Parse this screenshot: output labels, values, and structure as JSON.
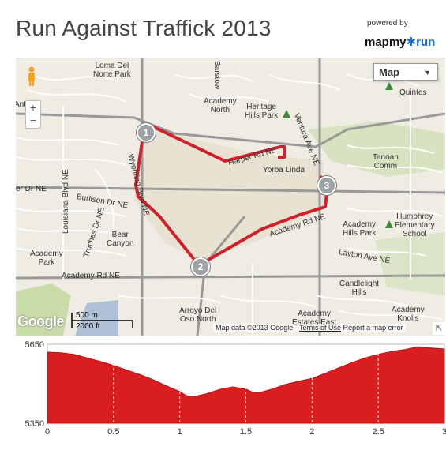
{
  "title": "Run Against Traffick 2013",
  "powered_by": "powered by",
  "brand": {
    "prefix": "mapmy",
    "suffix": "run"
  },
  "map": {
    "map_type_label": "Map",
    "scale_m": "500 m",
    "scale_ft": "2000 ft",
    "google_logo": "Google",
    "attribution": "Map data ©2013 Google",
    "terms": "Terms of Use",
    "report": "Report a map error",
    "zoom_in": "+",
    "zoom_out": "−",
    "markers": [
      "1",
      "2",
      "3"
    ],
    "labels": {
      "loma": "Loma Del\nNorte Park",
      "barstow": "Barstow",
      "academy_north": "Academy\nNorth",
      "heritage": "Heritage\nHills Park",
      "ventura": "Ventura Ave NE",
      "quintes": "Quintes",
      "anto": "Anto",
      "harper": "Harper Rd NE",
      "yorba": "Yorba Linda",
      "tanoan": "Tanoan\nComm",
      "louisiana": "Louisiana Blvd NE",
      "wyoming": "Wyoming Blvd NE",
      "er_dr": "er Dr NE",
      "burlison": "Burlison Dr NE",
      "academy_rd_ne_upper": "Academy Rd NE",
      "humphrey": "Humphrey\nElementary\nSchool",
      "academy_hills": "Academy\nHills Park",
      "truchas": "Truchas Dr NE",
      "bear": "Bear\nCanyon",
      "layton": "Layton Ave NE",
      "academy_park": "Academy\nPark",
      "academy_rd_ne": "Academy Rd NE",
      "candlelight": "Candlelight\nHills",
      "arroyo": "Arroyo Del\nOso North",
      "academy_estates": "Academy\nEstates East",
      "academy_knolls": "Academy\nKnolls"
    }
  },
  "elevation": {
    "y_ticks": [
      "5650",
      "5350"
    ],
    "x_ticks": [
      "0",
      "0.5",
      "1",
      "1.5",
      "2",
      "2.5",
      "3"
    ],
    "y_range": [
      5350,
      5650
    ],
    "x_range": [
      0,
      3
    ],
    "fill_color": "#d81e1e",
    "profile": [
      [
        0,
        5620
      ],
      [
        0.1,
        5618
      ],
      [
        0.2,
        5612
      ],
      [
        0.3,
        5598
      ],
      [
        0.4,
        5585
      ],
      [
        0.5,
        5570
      ],
      [
        0.6,
        5552
      ],
      [
        0.7,
        5535
      ],
      [
        0.8,
        5515
      ],
      [
        0.9,
        5492
      ],
      [
        1.0,
        5470
      ],
      [
        1.05,
        5455
      ],
      [
        1.1,
        5450
      ],
      [
        1.2,
        5462
      ],
      [
        1.3,
        5478
      ],
      [
        1.4,
        5488
      ],
      [
        1.5,
        5480
      ],
      [
        1.55,
        5468
      ],
      [
        1.6,
        5466
      ],
      [
        1.7,
        5480
      ],
      [
        1.8,
        5498
      ],
      [
        1.9,
        5510
      ],
      [
        2.0,
        5520
      ],
      [
        2.1,
        5540
      ],
      [
        2.2,
        5560
      ],
      [
        2.3,
        5580
      ],
      [
        2.4,
        5598
      ],
      [
        2.5,
        5612
      ],
      [
        2.6,
        5622
      ],
      [
        2.7,
        5630
      ],
      [
        2.8,
        5640
      ],
      [
        2.9,
        5636
      ],
      [
        3.0,
        5632
      ]
    ]
  }
}
